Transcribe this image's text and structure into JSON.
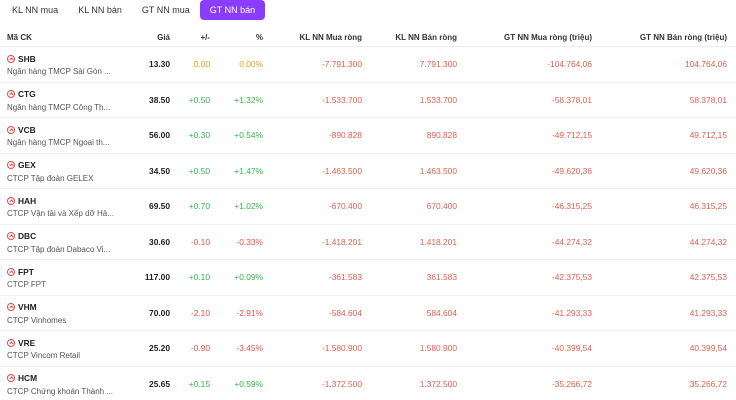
{
  "tabs": [
    {
      "label": "KL NN mua",
      "active": false
    },
    {
      "label": "KL NN bán",
      "active": false
    },
    {
      "label": "GT NN mua",
      "active": false
    },
    {
      "label": "GT NN bán",
      "active": true
    }
  ],
  "headers": {
    "symbol": "Mã CK",
    "price": "Giá",
    "change": "+/-",
    "pct": "%",
    "kl_mua": "KL NN Mua ròng",
    "kl_ban": "KL NN Bán ròng",
    "gt_mua": "GT NN Mua ròng (triệu)",
    "gt_ban": "GT NN Bán ròng (triệu)"
  },
  "rows": [
    {
      "symbol": "SHB",
      "name": "Ngân hàng TMCP Sài Gòn ...",
      "price": "13.30",
      "change": "0.00",
      "pct": "0.00%",
      "dir": "flat",
      "kl_mua": "-7.791.300",
      "kl_ban": "7.791.300",
      "gt_mua": "-104.764,06",
      "gt_ban": "104.764,06"
    },
    {
      "symbol": "CTG",
      "name": "Ngân hàng TMCP Công Th...",
      "price": "38.50",
      "change": "+0.50",
      "pct": "+1.32%",
      "dir": "up",
      "kl_mua": "-1.533.700",
      "kl_ban": "1.533.700",
      "gt_mua": "-58.378,01",
      "gt_ban": "58.378,01"
    },
    {
      "symbol": "VCB",
      "name": "Ngân hàng TMCP Ngoại th...",
      "price": "56.00",
      "change": "+0.30",
      "pct": "+0.54%",
      "dir": "up",
      "kl_mua": "-890.828",
      "kl_ban": "890.828",
      "gt_mua": "-49.712,15",
      "gt_ban": "49.712,15"
    },
    {
      "symbol": "GEX",
      "name": "CTCP Tập đoàn GELEX",
      "price": "34.50",
      "change": "+0.50",
      "pct": "+1.47%",
      "dir": "up",
      "kl_mua": "-1.463.500",
      "kl_ban": "1.463.500",
      "gt_mua": "-49.620,36",
      "gt_ban": "49.620,36"
    },
    {
      "symbol": "HAH",
      "name": "CTCP Vận tải và Xếp dỡ Hả...",
      "price": "69.50",
      "change": "+0.70",
      "pct": "+1.02%",
      "dir": "up",
      "kl_mua": "-670.400",
      "kl_ban": "670.400",
      "gt_mua": "-46.315,25",
      "gt_ban": "46.315,25"
    },
    {
      "symbol": "DBC",
      "name": "CTCP Tập đoàn Dabaco Vi...",
      "price": "30.60",
      "change": "-0.10",
      "pct": "-0.33%",
      "dir": "down",
      "kl_mua": "-1.418.201",
      "kl_ban": "1.418.201",
      "gt_mua": "-44.274,32",
      "gt_ban": "44.274,32"
    },
    {
      "symbol": "FPT",
      "name": "CTCP FPT",
      "price": "117.00",
      "change": "+0.10",
      "pct": "+0.09%",
      "dir": "up",
      "kl_mua": "-361.583",
      "kl_ban": "361.583",
      "gt_mua": "-42.375,53",
      "gt_ban": "42.375,53"
    },
    {
      "symbol": "VHM",
      "name": "CTCP Vinhomes",
      "price": "70.00",
      "change": "-2.10",
      "pct": "-2.91%",
      "dir": "down",
      "kl_mua": "-584.604",
      "kl_ban": "584.604",
      "gt_mua": "-41.293,33",
      "gt_ban": "41.293,33"
    },
    {
      "symbol": "VRE",
      "name": "CTCP Vincom Retail",
      "price": "25.20",
      "change": "-0.90",
      "pct": "-3.45%",
      "dir": "down",
      "kl_mua": "-1.580.900",
      "kl_ban": "1.580.900",
      "gt_mua": "-40.399,54",
      "gt_ban": "40.399,54"
    },
    {
      "symbol": "HCM",
      "name": "CTCP Chứng khoán Thành ...",
      "price": "25.65",
      "change": "+0.15",
      "pct": "+0.59%",
      "dir": "up",
      "kl_mua": "-1.372.500",
      "kl_ban": "1.372.500",
      "gt_mua": "-35.266,72",
      "gt_ban": "35.266,72"
    }
  ]
}
